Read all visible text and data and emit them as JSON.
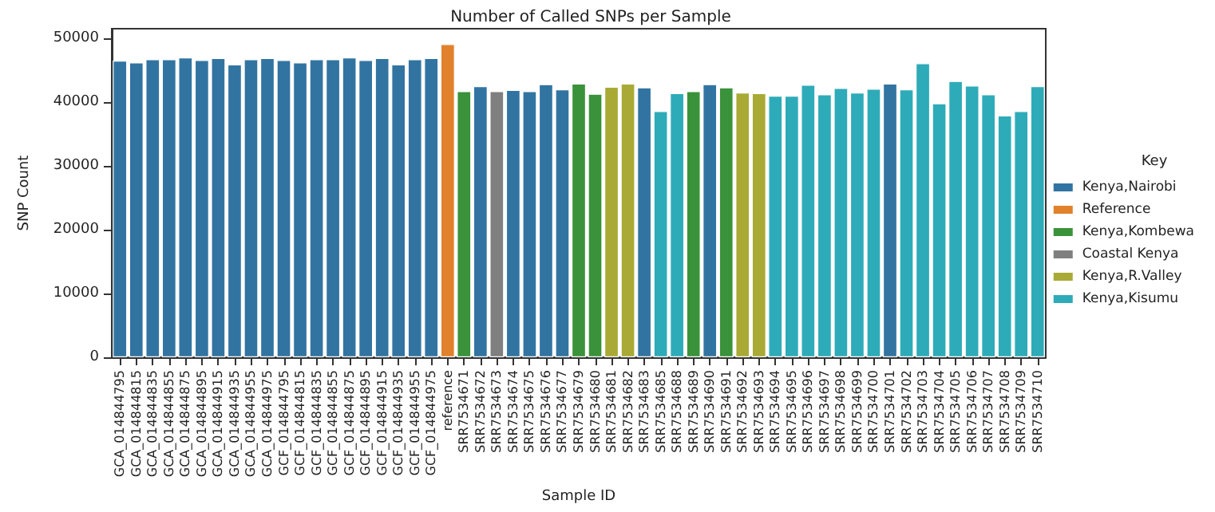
{
  "chart_data": {
    "type": "bar",
    "title": "Number of Called SNPs per Sample",
    "xlabel": "Sample ID",
    "ylabel": "SNP Count",
    "legend_title": "Key",
    "legend": "right",
    "grid": false,
    "stacked": true,
    "categories": [
      "GCA_014844795",
      "GCA_014844815",
      "GCA_014844835",
      "GCA_014844855",
      "GCA_014844875",
      "GCA_014844895",
      "GCA_014844915",
      "GCA_014844935",
      "GCA_014844955",
      "GCA_014844975",
      "GCF_014844795",
      "GCF_014844815",
      "GCF_014844835",
      "GCF_014844855",
      "GCF_014844875",
      "GCF_014844895",
      "GCF_014844915",
      "GCF_014844935",
      "GCF_014844955",
      "GCF_014844975",
      "reference",
      "SRR7534671",
      "SRR7534672",
      "SRR7534673",
      "SRR7534674",
      "SRR7534675",
      "SRR7534676",
      "SRR7534677",
      "SRR7534679",
      "SRR7534680",
      "SRR7534681",
      "SRR7534682",
      "SRR7534683",
      "SRR7534685",
      "SRR7534688",
      "SRR7534689",
      "SRR7534690",
      "SRR7534691",
      "SRR7534692",
      "SRR7534693",
      "SRR7534694",
      "SRR7534695",
      "SRR7534696",
      "SRR7534697",
      "SRR7534698",
      "SRR7534699",
      "SRR7534700",
      "SRR7534701",
      "SRR7534702",
      "SRR7534703",
      "SRR7534704",
      "SRR7534705",
      "SRR7534706",
      "SRR7534707",
      "SRR7534708",
      "SRR7534709",
      "SRR7534710"
    ],
    "ylim": [
      0,
      51500
    ],
    "yticks": [
      0,
      10000,
      20000,
      30000,
      40000,
      50000
    ],
    "series": [
      {
        "name": "Kenya,Nairobi",
        "color": "#3274a1",
        "values": [
          46500,
          46200,
          46700,
          46700,
          47000,
          46600,
          46900,
          45900,
          46700,
          46900,
          46600,
          46200,
          46700,
          46700,
          47000,
          46600,
          46900,
          45900,
          46700,
          46900,
          null,
          null,
          42500,
          null,
          41900,
          41700,
          42800,
          42000,
          null,
          null,
          null,
          null,
          42300,
          null,
          null,
          null,
          42800,
          null,
          null,
          null,
          null,
          null,
          null,
          null,
          null,
          null,
          null,
          42900,
          null,
          null,
          null,
          null,
          null,
          null,
          null,
          null,
          null
        ]
      },
      {
        "name": "Reference",
        "color": "#e1812c",
        "values": [
          null,
          null,
          null,
          null,
          null,
          null,
          null,
          null,
          null,
          null,
          null,
          null,
          null,
          null,
          null,
          null,
          null,
          null,
          null,
          null,
          49100,
          null,
          null,
          null,
          null,
          null,
          null,
          null,
          null,
          null,
          null,
          null,
          null,
          null,
          null,
          null,
          null,
          null,
          null,
          null,
          null,
          null,
          null,
          null,
          null,
          null,
          null,
          null,
          null,
          null,
          null,
          null,
          null,
          null,
          null,
          null,
          null
        ]
      },
      {
        "name": "Kenya,Kombewa",
        "color": "#3a923a",
        "values": [
          null,
          null,
          null,
          null,
          null,
          null,
          null,
          null,
          null,
          null,
          null,
          null,
          null,
          null,
          null,
          null,
          null,
          null,
          null,
          null,
          null,
          41700,
          null,
          null,
          null,
          null,
          null,
          null,
          42900,
          41300,
          null,
          null,
          null,
          null,
          null,
          41700,
          null,
          42300,
          null,
          null,
          null,
          null,
          null,
          null,
          null,
          null,
          null,
          null,
          null,
          null,
          null,
          null,
          null,
          null,
          null,
          null,
          null
        ]
      },
      {
        "name": "Coastal Kenya",
        "color": "#7f7f7f",
        "values": [
          null,
          null,
          null,
          null,
          null,
          null,
          null,
          null,
          null,
          null,
          null,
          null,
          null,
          null,
          null,
          null,
          null,
          null,
          null,
          null,
          null,
          null,
          null,
          41700,
          null,
          null,
          null,
          null,
          null,
          null,
          null,
          null,
          null,
          null,
          null,
          null,
          null,
          null,
          null,
          null,
          null,
          null,
          null,
          null,
          null,
          null,
          null,
          null,
          null,
          null,
          null,
          null,
          null,
          null,
          null,
          null,
          null
        ]
      },
      {
        "name": "Kenya,R.Valley",
        "color": "#a9aa35",
        "values": [
          null,
          null,
          null,
          null,
          null,
          null,
          null,
          null,
          null,
          null,
          null,
          null,
          null,
          null,
          null,
          null,
          null,
          null,
          null,
          null,
          null,
          null,
          null,
          null,
          null,
          null,
          null,
          null,
          null,
          null,
          42400,
          42900,
          null,
          null,
          null,
          null,
          null,
          null,
          41500,
          41400,
          null,
          null,
          null,
          null,
          null,
          null,
          null,
          null,
          null,
          null,
          null,
          null,
          null,
          null,
          null,
          null,
          null
        ]
      },
      {
        "name": "Kenya,Kisumu",
        "color": "#2eabb8",
        "values": [
          null,
          null,
          null,
          null,
          null,
          null,
          null,
          null,
          null,
          null,
          null,
          null,
          null,
          null,
          null,
          null,
          null,
          null,
          null,
          null,
          null,
          null,
          null,
          null,
          null,
          null,
          null,
          null,
          null,
          null,
          null,
          null,
          null,
          38600,
          41400,
          null,
          null,
          null,
          null,
          null,
          41000,
          41000,
          42700,
          41200,
          42200,
          41500,
          42100,
          null,
          42000,
          46100,
          39800,
          43300,
          42600,
          41200,
          37900,
          38600,
          42500
        ]
      }
    ]
  }
}
